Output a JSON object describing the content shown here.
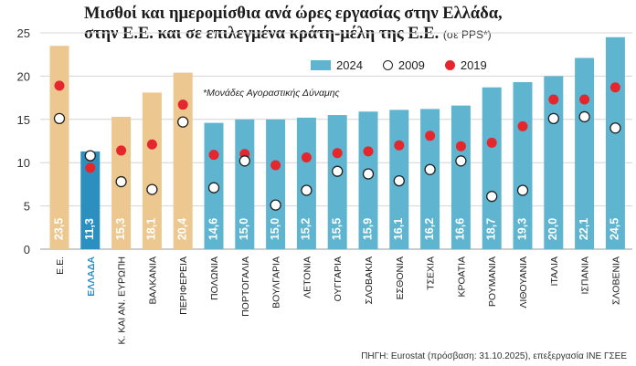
{
  "chart_data": {
    "type": "bar",
    "title": "Μισθοί και ημερομίσθια ανά ώρες εργασίας στην Ελλάδα, στην Ε.Ε. και σε επιλεγμένα κράτη-μέλη της Ε.Ε.",
    "unit": "(σε PPS*)",
    "note": "*Μονάδες Αγοραστικής Δύναμης",
    "source": "ΠΗΓΗ: Eurostat (πρόσβαση: 31.10.2025), επεξεργασία ΙΝΕ ΓΣΕΕ",
    "categories": [
      "Ε.Ε.",
      "ΕΛΛΑΔΑ",
      "Κ. ΚΑΙ ΑΝ. ΕΥΡΩΠΗ",
      "ΒΑΛΚΑΝΙΑ",
      "ΠΕΡΙΦΕΡΕΙΑ",
      "ΠΟΛΩΝΙΑ",
      "ΠΟΡΤΟΓΑΛΙΑ",
      "ΒΟΥΛΓΑΡΙΑ",
      "ΛΕΤΟΝΙΑ",
      "ΟΥΓΓΑΡΙΑ",
      "ΣΛΟΒΑΚΙΑ",
      "ΕΣΘΟΝΙΑ",
      "ΤΣΕΧΙΑ",
      "ΚΡΟΑΤΙΑ",
      "ΡΟΥΜΑΝΙΑ",
      "ΛΙΘΟΥΑΝΙΑ",
      "ΙΤΑΛΙΑ",
      "ΙΣΠΑΝΙΑ",
      "ΣΛΟΒΕΝΙΑ"
    ],
    "value_labels": [
      "23,5",
      "11,3",
      "15,3",
      "18,1",
      "20,4",
      "14,6",
      "15,0",
      "15,0",
      "15,2",
      "15,5",
      "15,9",
      "16,1",
      "16,2",
      "16,6",
      "18,7",
      "19,3",
      "20,0",
      "22,1",
      "24,5"
    ],
    "series": [
      {
        "name": "2024",
        "kind": "bar",
        "values": [
          23.5,
          11.3,
          15.3,
          18.1,
          20.4,
          14.6,
          15.0,
          15.0,
          15.2,
          15.5,
          15.9,
          16.1,
          16.2,
          16.6,
          18.7,
          19.3,
          20.0,
          22.1,
          24.5
        ]
      },
      {
        "name": "2009",
        "kind": "open-circle",
        "values": [
          15.1,
          10.8,
          7.8,
          6.9,
          14.7,
          7.1,
          10.2,
          5.1,
          6.8,
          9.0,
          8.7,
          7.9,
          9.2,
          10.2,
          6.1,
          6.8,
          15.1,
          15.3,
          14.0
        ]
      },
      {
        "name": "2019",
        "kind": "red-dot",
        "values": [
          18.9,
          9.4,
          11.4,
          12.1,
          16.7,
          10.9,
          11.0,
          9.7,
          10.6,
          11.1,
          11.3,
          12.0,
          13.1,
          11.9,
          12.3,
          14.2,
          17.3,
          17.3,
          18.7
        ]
      }
    ],
    "ylim": [
      0,
      25
    ],
    "yticks": [
      0,
      5,
      10,
      15,
      20,
      25
    ],
    "grid": true,
    "legend_position": "top-right",
    "colors": {
      "regions_bar": "#ecc890",
      "greece_bar": "#2b8fc0",
      "country_bar": "#5fb4cf",
      "dot_2019": "#e5262c",
      "greece_label": "#2b8fc0"
    },
    "region_count": 5,
    "highlight_category": "ΕΛΛΑΔΑ"
  }
}
